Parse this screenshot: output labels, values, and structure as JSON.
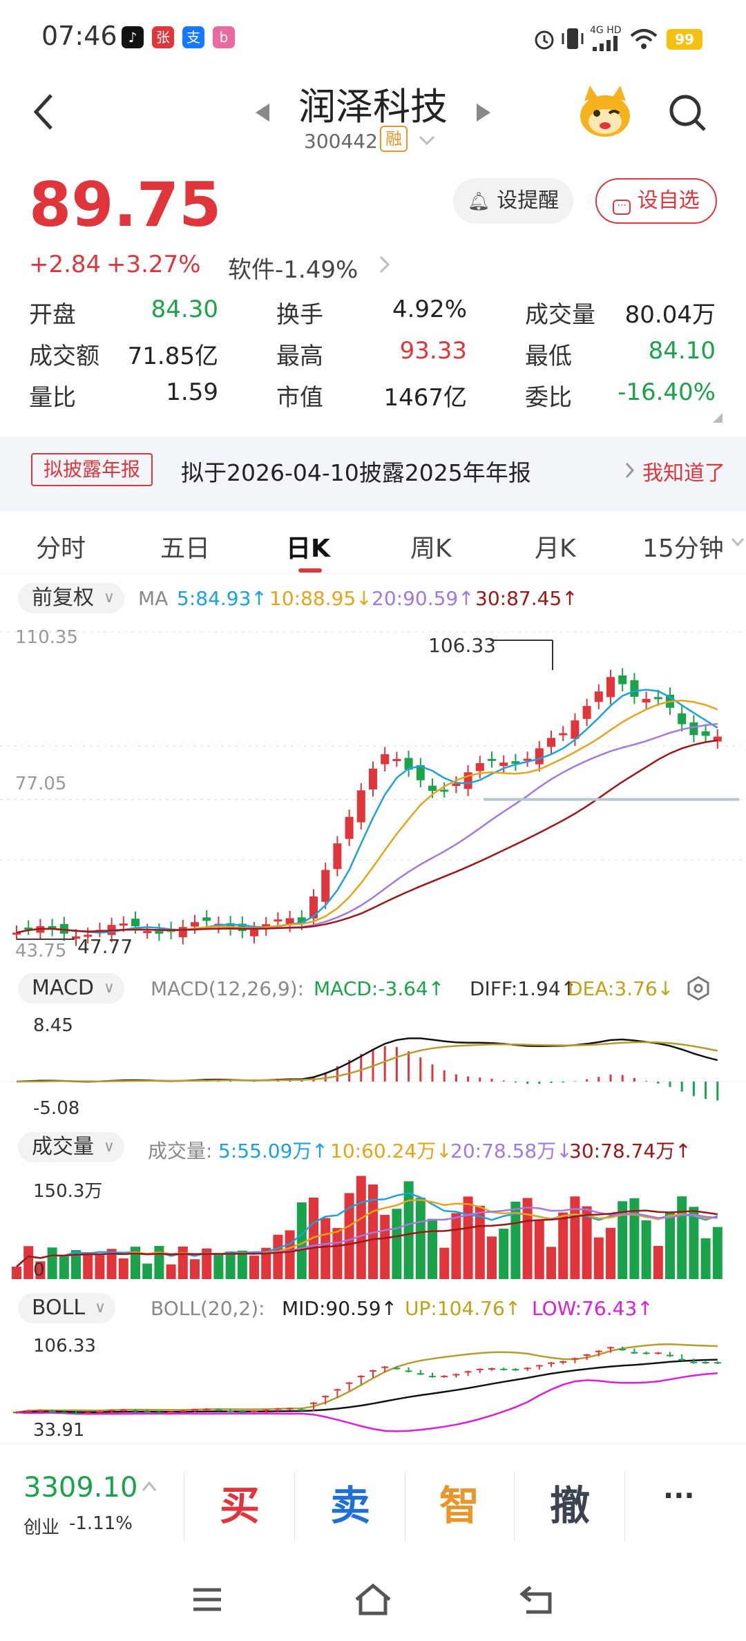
{
  "status_bar": {
    "time": "07:46",
    "battery": "99",
    "network": "4G HD"
  },
  "header": {
    "stock_name": "润泽科技",
    "stock_code": "300442",
    "margin_badge": "融"
  },
  "quote": {
    "price": "89.75",
    "change": "+2.84",
    "change_pct": "+3.27%",
    "sector": "软件-1.49%",
    "alert_label": "设提醒",
    "fav_label": "设自选",
    "rows": [
      [
        {
          "label": "开盘",
          "value": "84.30",
          "color": "green"
        },
        {
          "label": "换手",
          "value": "4.92%",
          "color": "dark"
        },
        {
          "label": "成交量",
          "value": "80.04万",
          "color": "dark"
        }
      ],
      [
        {
          "label": "成交额",
          "value": "71.85亿",
          "color": "dark"
        },
        {
          "label": "最高",
          "value": "93.33",
          "color": "red"
        },
        {
          "label": "最低",
          "value": "84.10",
          "color": "green"
        }
      ],
      [
        {
          "label": "量比",
          "value": "1.59",
          "color": "dark"
        },
        {
          "label": "市值",
          "value": "1467亿",
          "color": "dark"
        },
        {
          "label": "委比",
          "value": "-16.40%",
          "color": "green"
        }
      ]
    ]
  },
  "notice": {
    "tag": "拟披露年报",
    "text": "拟于2026-04-10披露2025年年报",
    "dismiss": "我知道了"
  },
  "tabs": [
    "分时",
    "五日",
    "日K",
    "周K",
    "月K",
    "15分钟"
  ],
  "kline": {
    "adjust": "前复权",
    "ma_label": "MA",
    "ma5": "5:84.93↑",
    "ma10": "10:88.95↓",
    "ma20": "20:90.59↑",
    "ma30": "30:87.45↑",
    "axis_top": "110.35",
    "axis_mid": "77.05",
    "axis_bottom": "43.75",
    "high_label": "106.33",
    "low_label": "47.77"
  },
  "macd": {
    "name": "MACD",
    "params": "MACD(12,26,9):",
    "macd": "MACD:-3.64↑",
    "diff": "DIFF:1.94↑",
    "dea": "DEA:3.76↓",
    "axis_top": "8.45",
    "axis_bottom": "-5.08"
  },
  "volume": {
    "name": "成交量",
    "label": "成交量:",
    "v5": "5:55.09万↑",
    "v10": "10:60.24万↓",
    "v20": "20:78.58万↓",
    "v30": "30:78.74万↑",
    "axis_top": "150.3万",
    "axis_zero": "0"
  },
  "boll": {
    "name": "BOLL",
    "params": "BOLL(20,2):",
    "mid": "MID:90.59↑",
    "up": "UP:104.76↑",
    "low": "LOW:76.43↑",
    "axis_top": "106.33",
    "axis_bottom": "33.91"
  },
  "bottom_bar": {
    "index_value": "3309.10",
    "index_name": "创业",
    "index_change": "-1.11%",
    "buy": "买",
    "sell": "卖",
    "smart": "智",
    "cancel": "撤",
    "more": "···"
  },
  "colors": {
    "up": "#e0363b",
    "down": "#1aa34a",
    "ma5": "#19a1e0",
    "ma10": "#e8a317",
    "ma20": "#a278e6",
    "ma30": "#a01515"
  }
}
